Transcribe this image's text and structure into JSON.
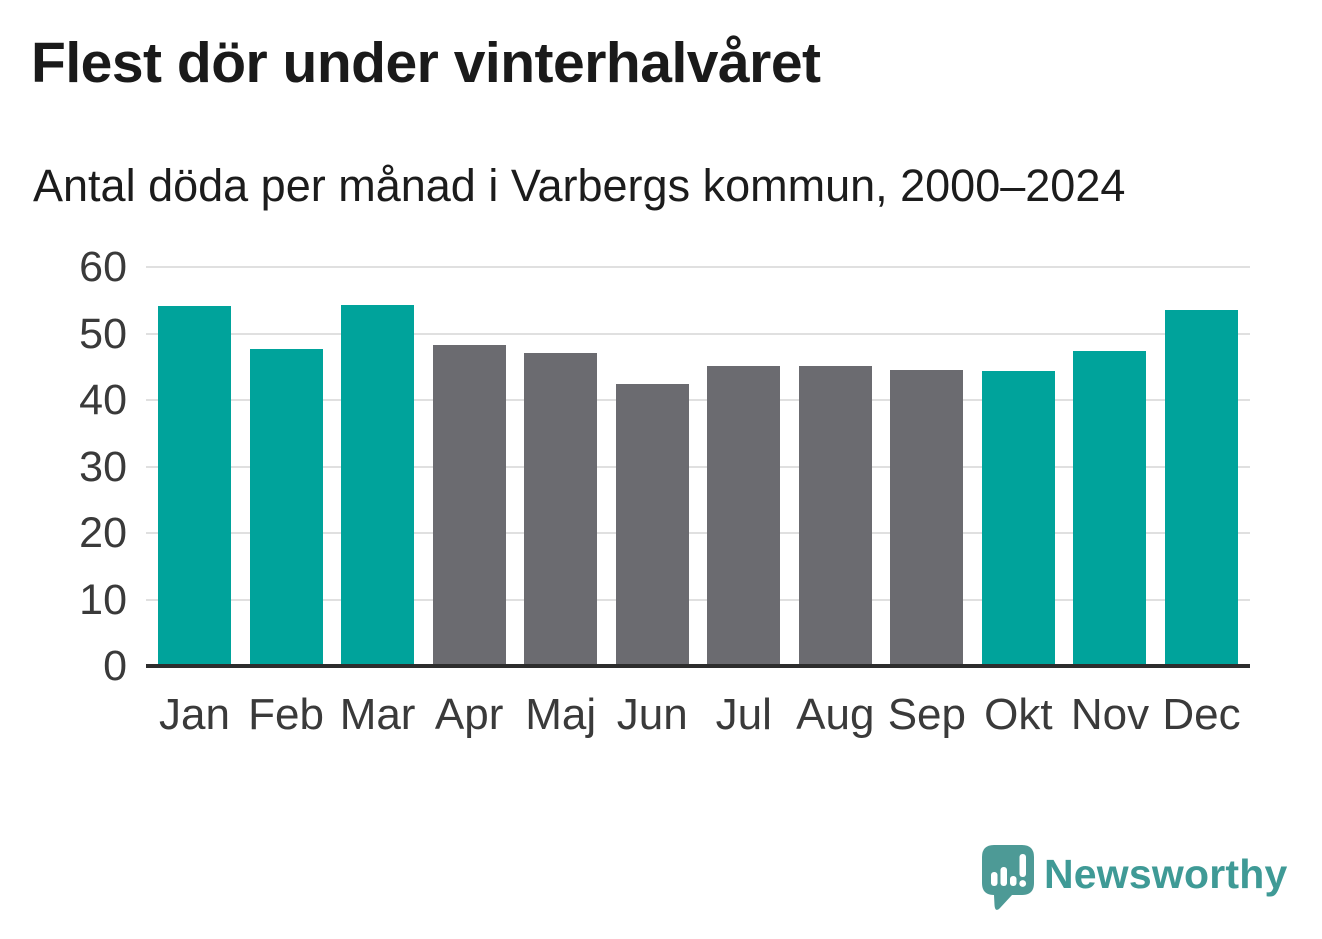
{
  "title": "Flest dör under vinterhalvåret",
  "subtitle": "Antal döda per månad i Varbergs kommun, 2000–2024",
  "chart_data": {
    "type": "bar",
    "categories": [
      "Jan",
      "Feb",
      "Mar",
      "Apr",
      "Maj",
      "Jun",
      "Jul",
      "Aug",
      "Sep",
      "Okt",
      "Nov",
      "Dec"
    ],
    "values": [
      54.1,
      47.6,
      54.3,
      48.2,
      47.0,
      42.4,
      45.1,
      45.1,
      44.5,
      44.4,
      47.3,
      53.5
    ],
    "bar_color_keys": [
      "winter",
      "winter",
      "winter",
      "summer",
      "summer",
      "summer",
      "summer",
      "summer",
      "summer",
      "winter",
      "winter",
      "winter"
    ],
    "colors": {
      "winter": "#00a39b",
      "summer": "#6b6b70"
    },
    "title": "Flest dör under vinterhalvåret",
    "subtitle": "Antal döda per månad i Varbergs kommun, 2000–2024",
    "xlabel": "",
    "ylabel": "",
    "ylim": [
      0,
      60
    ],
    "yticks": [
      0,
      10,
      20,
      30,
      40,
      50,
      60
    ],
    "grid": true,
    "legend": false,
    "gridline_color": "#e0e0e0",
    "axis_line_color": "#2d2d2d",
    "tick_label_color": "#3a3a3a"
  },
  "branding": {
    "logo_text": "Newsworthy",
    "logo_icon": "newsworthy-speech-bubble-chart-icon",
    "logo_bubble_color": "#4d9a96",
    "logo_text_color": "#3f9a96"
  }
}
